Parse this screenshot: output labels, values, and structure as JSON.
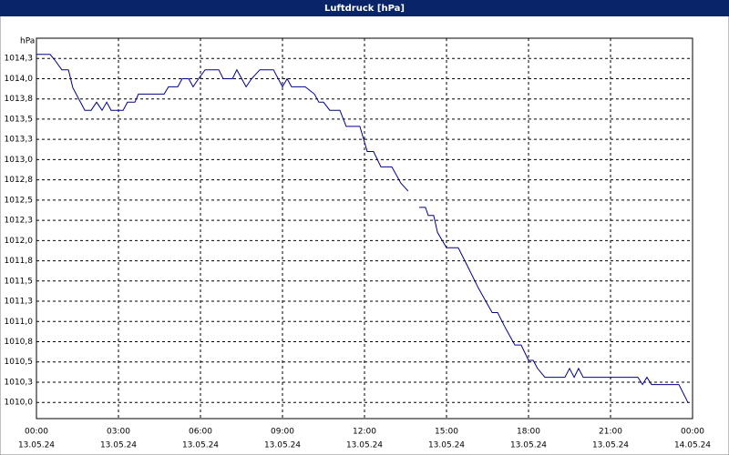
{
  "chart_data": {
    "type": "line",
    "title": "Luftdruck [hPa]",
    "ylabel": "hPa",
    "color": "#00008b",
    "grid": true,
    "xlim": [
      0,
      24
    ],
    "xticks": [
      {
        "value": 0,
        "label": "00:00"
      },
      {
        "value": 3,
        "label": "03:00"
      },
      {
        "value": 6,
        "label": "06:00"
      },
      {
        "value": 9,
        "label": "09:00"
      },
      {
        "value": 12,
        "label": "12:00"
      },
      {
        "value": 15,
        "label": "15:00"
      },
      {
        "value": 18,
        "label": "18:00"
      },
      {
        "value": 21,
        "label": "21:00"
      },
      {
        "value": 24,
        "label": "00:00"
      }
    ],
    "xtick_dates": [
      "13.05.24",
      "13.05.24",
      "13.05.24",
      "13.05.24",
      "13.05.24",
      "13.05.24",
      "13.05.24",
      "13.05.24",
      "14.05.24"
    ],
    "ylim": [
      1009.8,
      1014.5
    ],
    "yticks": [
      {
        "value": 1010.0,
        "label": "1010,0"
      },
      {
        "value": 1010.25,
        "label": "1010,3"
      },
      {
        "value": 1010.5,
        "label": "1010,5"
      },
      {
        "value": 1010.75,
        "label": "1010,8"
      },
      {
        "value": 1011.0,
        "label": "1011,0"
      },
      {
        "value": 1011.25,
        "label": "1011,3"
      },
      {
        "value": 1011.5,
        "label": "1011,5"
      },
      {
        "value": 1011.75,
        "label": "1011,8"
      },
      {
        "value": 1012.0,
        "label": "1012,0"
      },
      {
        "value": 1012.25,
        "label": "1012,3"
      },
      {
        "value": 1012.5,
        "label": "1012,5"
      },
      {
        "value": 1012.75,
        "label": "1012,8"
      },
      {
        "value": 1013.0,
        "label": "1013,0"
      },
      {
        "value": 1013.25,
        "label": "1013,3"
      },
      {
        "value": 1013.5,
        "label": "1013,5"
      },
      {
        "value": 1013.75,
        "label": "1013,8"
      },
      {
        "value": 1014.0,
        "label": "1014,0"
      },
      {
        "value": 1014.25,
        "label": "1014,3"
      }
    ],
    "x": [
      0,
      0.5,
      0.67,
      0.93,
      1.17,
      1.33,
      1.5,
      1.77,
      2,
      2.2,
      2.4,
      2.57,
      2.73,
      3.17,
      3.33,
      3.6,
      3.73,
      4.67,
      4.83,
      5.17,
      5.33,
      5.57,
      5.73,
      5.93,
      6.17,
      6.67,
      6.83,
      7.17,
      7.33,
      7.67,
      7.87,
      8.17,
      8.67,
      9,
      9.17,
      9.33,
      9.83,
      10.17,
      10.33,
      10.5,
      10.73,
      11.1,
      11.33,
      11.83,
      12.1,
      12.33,
      12.6,
      13,
      13.33,
      13.6,
      13.9,
      14,
      14.23,
      14.33,
      14.53,
      14.67,
      15,
      15.43,
      15.73,
      16.17,
      16.67,
      16.87,
      17.17,
      17.5,
      17.73,
      18,
      18.17,
      18.33,
      18.6,
      19.33,
      19.5,
      19.67,
      19.83,
      20,
      22,
      22.17,
      22.33,
      22.5,
      23.5,
      23.83
    ],
    "values": [
      1014.3,
      1014.3,
      1014.23,
      1014.11,
      1014.11,
      1013.89,
      1013.78,
      1013.61,
      1013.61,
      1013.71,
      1013.61,
      1013.71,
      1013.61,
      1013.61,
      1013.71,
      1013.71,
      1013.81,
      1013.81,
      1013.9,
      1013.9,
      1014.0,
      1014.0,
      1013.9,
      1014.0,
      1014.11,
      1014.11,
      1014.0,
      1014.0,
      1014.11,
      1013.9,
      1014.0,
      1014.11,
      1014.11,
      1013.9,
      1014.0,
      1013.9,
      1013.9,
      1013.81,
      1013.71,
      1013.71,
      1013.61,
      1013.61,
      1013.41,
      1013.41,
      1013.1,
      1013.1,
      1012.91,
      1012.91,
      1012.71,
      1012.61,
      null,
      1012.41,
      1012.41,
      1012.31,
      1012.31,
      1012.1,
      1011.91,
      1011.91,
      1011.71,
      1011.41,
      1011.11,
      1011.11,
      1010.91,
      1010.71,
      1010.71,
      1010.52,
      1010.52,
      1010.42,
      1010.31,
      1010.31,
      1010.42,
      1010.31,
      1010.42,
      1010.31,
      1010.31,
      1010.22,
      1010.31,
      1010.22,
      1010.22,
      1010.0
    ]
  }
}
